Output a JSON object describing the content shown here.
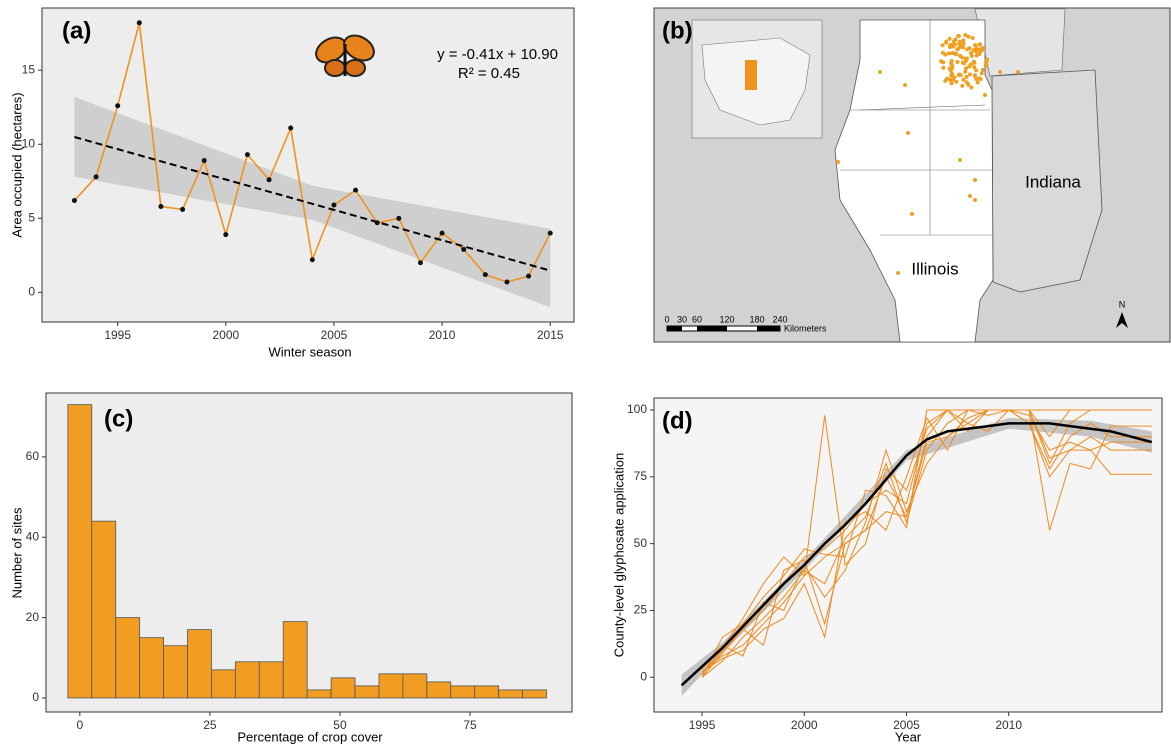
{
  "chart_data": [
    {
      "type": "line",
      "panel_label": "(a)",
      "xlabel": "Winter season",
      "ylabel": "Area occupied (hectares)",
      "equation": "y = -0.41x + 10.90",
      "r2": "R² = 0.45",
      "x": [
        1993,
        1994,
        1995,
        1996,
        1997,
        1998,
        1999,
        2000,
        2001,
        2002,
        2003,
        2004,
        2005,
        2006,
        2007,
        2008,
        2009,
        2010,
        2011,
        2012,
        2013,
        2014,
        2015
      ],
      "values": [
        6.2,
        7.8,
        12.6,
        18.2,
        5.8,
        5.6,
        8.9,
        3.9,
        9.3,
        7.6,
        11.1,
        2.2,
        5.9,
        6.9,
        4.7,
        5.0,
        2.0,
        4.0,
        2.9,
        1.2,
        0.7,
        1.1,
        4.0
      ],
      "color": "#f0921e",
      "trend": {
        "x": [
          1993,
          2015
        ],
        "values": [
          10.49,
          1.47
        ],
        "color": "#000000"
      },
      "band": {
        "x": [
          1993,
          2004,
          2015
        ],
        "lower": [
          7.8,
          4.9,
          -1.0
        ],
        "upper": [
          13.2,
          7.2,
          4.3
        ],
        "color": "#cfcfcf"
      },
      "xlim": [
        1991.5,
        2016.1
      ],
      "xticks": [
        1995,
        2000,
        2005,
        2010,
        2015
      ],
      "ylim": [
        -2,
        19.2
      ],
      "yticks": [
        0,
        5,
        10,
        15
      ]
    },
    {
      "type": "map",
      "panel_label": "(b)",
      "regions": [
        "Indiana",
        "Illinois"
      ],
      "scale_labels": [
        "0",
        "30",
        "60",
        "120",
        "180",
        "240"
      ],
      "scale_unit": "Kilometers",
      "north": "N"
    },
    {
      "type": "histogram",
      "panel_label": "(c)",
      "xlabel": "Percentage of crop cover",
      "ylabel": "Number of sites",
      "bins": [
        -2.3,
        2.3,
        6.9,
        11.5,
        16.1,
        20.7,
        25.3,
        29.9,
        34.5,
        39.1,
        43.7,
        48.3,
        52.9,
        57.5,
        62.1,
        66.7,
        71.3,
        75.9,
        80.5,
        85.1,
        89.7
      ],
      "values": [
        73,
        44,
        20,
        15,
        13,
        17,
        7,
        9,
        9,
        19,
        2,
        5,
        3,
        6,
        6,
        4,
        3,
        3,
        2,
        2
      ],
      "color": "#f09d22",
      "xlim": [
        -6.5,
        94.6
      ],
      "xticks": [
        0,
        25,
        50,
        75
      ],
      "ylim": [
        -3.5,
        75.9
      ],
      "yticks": [
        0,
        20,
        40,
        60
      ]
    },
    {
      "type": "line",
      "panel_label": "(d)",
      "xlabel": "Year",
      "ylabel": "County-level glyphosate application",
      "x": [
        1995,
        1996,
        1997,
        1998,
        1999,
        2000,
        2001,
        2002,
        2003,
        2004,
        2005,
        2006,
        2007,
        2008,
        2009,
        2010,
        2011,
        2012,
        2013,
        2014,
        2015,
        2016,
        2017
      ],
      "series": [
        {
          "color": "#f08a1c",
          "values": [
            2,
            8,
            12,
            20,
            28,
            38,
            45,
            50,
            55,
            75,
            60,
            90,
            100,
            95,
            92,
            100,
            100,
            80,
            95,
            100,
            100,
            100,
            100
          ]
        },
        {
          "color": "#f08a1c",
          "values": [
            0,
            6,
            15,
            22,
            30,
            40,
            35,
            52,
            60,
            80,
            58,
            85,
            95,
            100,
            98,
            100,
            95,
            78,
            90,
            95,
            90,
            90,
            90
          ]
        },
        {
          "color": "#f08a1c",
          "values": [
            1,
            10,
            18,
            25,
            35,
            45,
            48,
            55,
            65,
            70,
            65,
            95,
            100,
            100,
            100,
            100,
            100,
            90,
            100,
            100,
            100,
            100,
            100
          ]
        },
        {
          "color": "#f08a1c",
          "values": [
            3,
            12,
            8,
            28,
            25,
            42,
            30,
            40,
            58,
            85,
            62,
            80,
            90,
            95,
            100,
            100,
            95,
            75,
            85,
            90,
            85,
            85,
            85
          ]
        },
        {
          "color": "#f08a1c",
          "values": [
            0,
            15,
            20,
            30,
            38,
            48,
            46,
            45,
            70,
            68,
            56,
            100,
            100,
            92,
            100,
            100,
            100,
            82,
            85,
            85,
            76,
            76,
            76
          ]
        },
        {
          "color": "#f08a1c",
          "values": [
            2,
            7,
            10,
            18,
            22,
            35,
            15,
            58,
            62,
            55,
            75,
            97,
            85,
            100,
            100,
            100,
            100,
            55,
            80,
            78,
            94,
            94,
            94
          ]
        },
        {
          "color": "#f08a1c",
          "values": [
            1,
            11,
            22,
            35,
            45,
            38,
            98,
            42,
            50,
            78,
            70,
            93,
            100,
            100,
            100,
            100,
            100,
            100,
            100,
            100,
            100,
            100,
            100
          ]
        },
        {
          "color": "#f08a1c",
          "values": [
            0,
            9,
            18,
            12,
            40,
            44,
            20,
            50,
            55,
            62,
            60,
            88,
            90,
            97,
            100,
            100,
            98,
            85,
            88,
            85,
            88,
            88,
            88
          ]
        }
      ],
      "smooth": {
        "x": [
          1994,
          1995,
          1996,
          1997,
          1998,
          1999,
          2000,
          2001,
          2002,
          2003,
          2004,
          2005,
          2006,
          2007,
          2008,
          2009,
          2010,
          2011,
          2012,
          2013,
          2014,
          2015,
          2016,
          2017
        ],
        "values": [
          -3,
          4,
          11,
          19,
          27,
          35,
          42,
          50,
          57,
          65,
          74,
          83,
          89,
          92,
          93,
          94,
          95,
          95,
          95,
          94,
          93,
          92,
          90,
          88
        ],
        "color": "#000000"
      },
      "band": {
        "x": [
          1994,
          1996,
          2000,
          2005,
          2010,
          2014,
          2017
        ],
        "lower": [
          -7,
          9,
          40,
          81,
          93,
          90,
          84
        ],
        "upper": [
          1,
          13,
          44,
          85,
          97,
          96,
          92
        ],
        "color": "#c4c4c4"
      },
      "xlim": [
        1992.65,
        2017.5
      ],
      "xticks": [
        1995,
        2000,
        2005,
        2010
      ],
      "ylim": [
        -13,
        104.5
      ],
      "yticks": [
        0,
        25,
        50,
        75,
        100
      ]
    }
  ]
}
